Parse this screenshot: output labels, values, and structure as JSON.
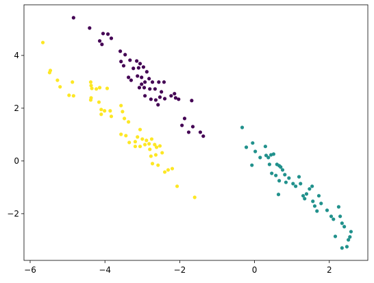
{
  "chart_data": {
    "type": "scatter",
    "xlim": [
      -6.165,
      3.03
    ],
    "ylim": [
      -3.77,
      5.92
    ],
    "xticks": [
      {
        "value": -6,
        "label": "−6"
      },
      {
        "value": -4,
        "label": "−4"
      },
      {
        "value": -2,
        "label": "−2"
      },
      0,
      2
    ],
    "yticks": [
      {
        "value": -2,
        "label": "−2"
      },
      0,
      2,
      4
    ],
    "series": [
      {
        "color": "#440154",
        "x": [
          -4.84,
          -4.41,
          -4.05,
          -3.92,
          -4.14,
          -4.08,
          -3.83,
          -3.59,
          -3.46,
          -3.57,
          -3.5,
          -3.33,
          -3.15,
          -3.06,
          -3.24,
          -3.1,
          -2.97,
          -3.37,
          -3.3,
          -3.13,
          -3.02,
          -2.88,
          -2.93,
          -2.82,
          -2.73,
          -2.95,
          -2.8,
          -2.56,
          -2.42,
          -2.66,
          -2.49,
          -2.93,
          -2.77,
          -2.64,
          -2.53,
          -2.4,
          -2.23,
          -2.14,
          -2.11,
          -2.03,
          -2.58,
          -1.68,
          -1.87,
          -1.94,
          -1.76,
          -1.65,
          -1.45,
          -1.37,
          -3.02,
          -3.08
        ],
        "values": [
          5.43,
          5.04,
          4.83,
          4.81,
          4.55,
          4.42,
          4.65,
          4.16,
          4.03,
          3.77,
          3.61,
          3.82,
          3.79,
          3.69,
          3.51,
          3.53,
          3.56,
          3.17,
          3.06,
          3.22,
          3.17,
          3.38,
          2.99,
          3.12,
          2.99,
          2.78,
          2.73,
          2.99,
          2.99,
          2.73,
          2.62,
          2.47,
          2.34,
          2.31,
          2.42,
          2.36,
          2.47,
          2.55,
          2.39,
          2.34,
          2.13,
          2.29,
          1.61,
          1.35,
          1.09,
          1.3,
          1.09,
          0.94,
          2.91,
          2.78
        ]
      },
      {
        "color": "#21918c",
        "x": [
          -0.33,
          -0.22,
          -0.05,
          -0.07,
          0.02,
          0.15,
          0.29,
          0.31,
          0.37,
          0.44,
          0.51,
          0.4,
          0.46,
          0.57,
          0.6,
          0.66,
          0.7,
          0.75,
          0.66,
          0.64,
          0.81,
          0.84,
          0.92,
          1.03,
          1.1,
          1.19,
          1.23,
          1.3,
          1.34,
          1.39,
          1.47,
          1.54,
          1.56,
          1.61,
          1.67,
          1.78,
          1.72,
          1.94,
          2.05,
          2.11,
          2.16,
          2.25,
          2.29,
          2.34,
          2.34,
          2.4,
          2.47,
          2.51,
          2.58,
          2.55
        ],
        "values": [
          1.27,
          0.52,
          0.68,
          -0.16,
          0.36,
          0.13,
          0.55,
          0.21,
          0.13,
          0.23,
          0.26,
          -0.13,
          -0.47,
          -0.55,
          -0.13,
          -0.18,
          -0.23,
          -0.34,
          -0.75,
          -1.27,
          -0.52,
          -0.81,
          -0.65,
          -0.86,
          -0.96,
          -0.6,
          -0.86,
          -1.32,
          -1.43,
          -1.25,
          -1.06,
          -0.96,
          -1.53,
          -1.71,
          -1.9,
          -1.61,
          -1.32,
          -1.87,
          -2.1,
          -2.21,
          -2.86,
          -1.74,
          -2.1,
          -2.36,
          -3.3,
          -2.49,
          -3.25,
          -2.99,
          -2.68,
          -2.88
        ]
      },
      {
        "color": "#fde725",
        "x": [
          -5.66,
          -5.48,
          -5.46,
          -5.27,
          -5.2,
          -4.87,
          -4.96,
          -4.84,
          -4.38,
          -4.37,
          -4.35,
          -4.23,
          -4.14,
          -3.94,
          -4.37,
          -4.38,
          -4.16,
          -4.1,
          -4.01,
          -3.86,
          -3.83,
          -4.1,
          -3.57,
          -3.53,
          -3.48,
          -3.37,
          -3.06,
          -3.57,
          -3.44,
          -3.13,
          -3.0,
          -3.19,
          -3.35,
          -3.19,
          -3.06,
          -2.93,
          -2.82,
          -2.89,
          -2.75,
          -2.8,
          -2.67,
          -2.62,
          -2.53,
          -2.77,
          -2.64,
          -2.47,
          -2.73,
          -2.58,
          -2.4,
          -2.31,
          -2.2,
          -2.07,
          -1.6
        ],
        "values": [
          4.49,
          3.35,
          3.43,
          3.06,
          2.81,
          2.99,
          2.49,
          2.47,
          2.99,
          2.86,
          2.75,
          2.73,
          2.78,
          2.75,
          2.39,
          2.31,
          2.23,
          1.95,
          1.9,
          1.9,
          1.69,
          1.77,
          2.1,
          1.87,
          1.61,
          1.48,
          1.19,
          1.01,
          0.96,
          0.91,
          0.83,
          0.73,
          0.7,
          0.55,
          0.55,
          0.62,
          0.65,
          0.78,
          0.83,
          0.44,
          0.62,
          0.52,
          0.57,
          0.18,
          0.23,
          0.31,
          -0.1,
          -0.16,
          -0.42,
          -0.34,
          -0.29,
          -0.96,
          -1.38
        ]
      }
    ]
  }
}
